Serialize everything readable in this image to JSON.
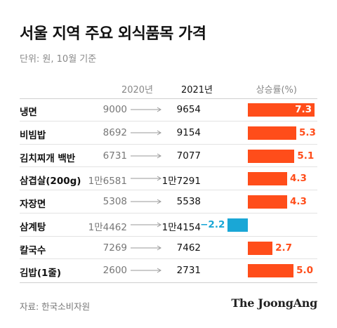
{
  "title": "서울 지역 주요 외식품목 가격",
  "unit_note": "단위: 원, 10월 기준",
  "headers": {
    "y2020": "2020년",
    "y2021": "2021년",
    "rate": "상승률(%)"
  },
  "source": "자료: 한국소비자원",
  "logo": "The JoongAng",
  "colors": {
    "positive": "#ff4d1a",
    "negative": "#1aa7d6",
    "negative_label": "#1aa7d6"
  },
  "chart_data": {
    "type": "table",
    "columns": [
      "",
      "2020년",
      "2021년",
      "상승률(%)"
    ],
    "rows": [
      {
        "item": "냉면",
        "price_2020": "9000",
        "price_2021": "9654",
        "rate": 7.3,
        "rate_label": "7.3"
      },
      {
        "item": "비빔밥",
        "price_2020": "8692",
        "price_2021": "9154",
        "rate": 5.3,
        "rate_label": "5.3"
      },
      {
        "item": "김치찌개 백반",
        "price_2020": "6731",
        "price_2021": "7077",
        "rate": 5.1,
        "rate_label": "5.1"
      },
      {
        "item": "삼겹살(200g)",
        "price_2020": "1만6581",
        "price_2021": "1만7291",
        "rate": 4.3,
        "rate_label": "4.3"
      },
      {
        "item": "자장면",
        "price_2020": "5308",
        "price_2021": "5538",
        "rate": 4.3,
        "rate_label": "4.3"
      },
      {
        "item": "삼계탕",
        "price_2020": "1만4462",
        "price_2021": "1만4154",
        "rate": -2.2,
        "rate_label": "−2.2"
      },
      {
        "item": "칼국수",
        "price_2020": "7269",
        "price_2021": "7462",
        "rate": 2.7,
        "rate_label": "2.7"
      },
      {
        "item": "김밥(1줄)",
        "price_2020": "2600",
        "price_2021": "2731",
        "rate": 5.0,
        "rate_label": "5.0"
      }
    ]
  }
}
